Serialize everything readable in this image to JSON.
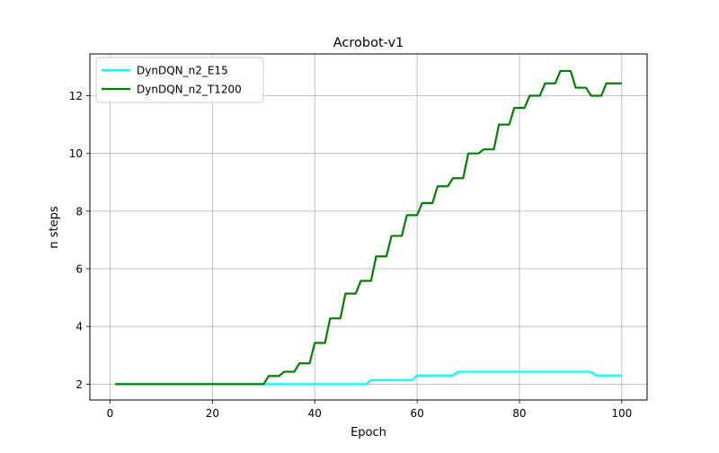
{
  "chart_data": {
    "type": "line",
    "title": "Acrobot-v1",
    "xlabel": "Epoch",
    "ylabel": "n steps",
    "xlim": [
      -3.95,
      104.95
    ],
    "ylim": [
      1.45,
      13.45
    ],
    "xticks": [
      0,
      20,
      40,
      60,
      80,
      100
    ],
    "yticks": [
      2,
      4,
      6,
      8,
      10,
      12
    ],
    "grid": true,
    "legend_position": "top-left",
    "series": [
      {
        "name": "DynDQN_n2_E15",
        "color": "#00ffff",
        "x": [
          1,
          30,
          31,
          50,
          51,
          59,
          60,
          67,
          68,
          94,
          95,
          100
        ],
        "y": [
          2.0,
          2.0,
          2.0,
          2.0,
          2.14,
          2.14,
          2.3,
          2.3,
          2.43,
          2.43,
          2.3,
          2.3
        ]
      },
      {
        "name": "DynDQN_n2_T1200",
        "color": "#008000",
        "x": [
          1,
          30,
          31,
          32,
          33,
          34,
          35,
          36,
          37,
          38,
          39,
          40,
          41,
          42,
          43,
          44,
          45,
          46,
          47,
          48,
          49,
          50,
          51,
          52,
          53,
          54,
          55,
          56,
          57,
          58,
          59,
          60,
          61,
          62,
          63,
          64,
          65,
          66,
          67,
          68,
          69,
          70,
          71,
          72,
          73,
          74,
          75,
          76,
          77,
          78,
          79,
          80,
          81,
          82,
          83,
          84,
          85,
          86,
          87,
          88,
          89,
          90,
          91,
          92,
          93,
          94,
          95,
          96,
          97,
          98,
          99,
          100
        ],
        "y": [
          2.0,
          2.0,
          2.28,
          2.28,
          2.28,
          2.43,
          2.43,
          2.43,
          2.72,
          2.72,
          2.72,
          3.43,
          3.43,
          3.43,
          4.28,
          4.28,
          4.28,
          5.14,
          5.14,
          5.14,
          5.58,
          5.58,
          5.58,
          6.43,
          6.43,
          6.43,
          7.14,
          7.14,
          7.14,
          7.86,
          7.86,
          7.86,
          8.28,
          8.28,
          8.28,
          8.86,
          8.86,
          8.86,
          9.14,
          9.14,
          9.14,
          10.0,
          10.0,
          10.0,
          10.14,
          10.14,
          10.14,
          11.0,
          11.0,
          11.0,
          11.58,
          11.58,
          11.58,
          12.0,
          12.0,
          12.0,
          12.43,
          12.43,
          12.43,
          12.86,
          12.86,
          12.86,
          12.28,
          12.28,
          12.28,
          12.0,
          12.0,
          12.0,
          12.43,
          12.43,
          12.43,
          12.43
        ]
      }
    ]
  }
}
